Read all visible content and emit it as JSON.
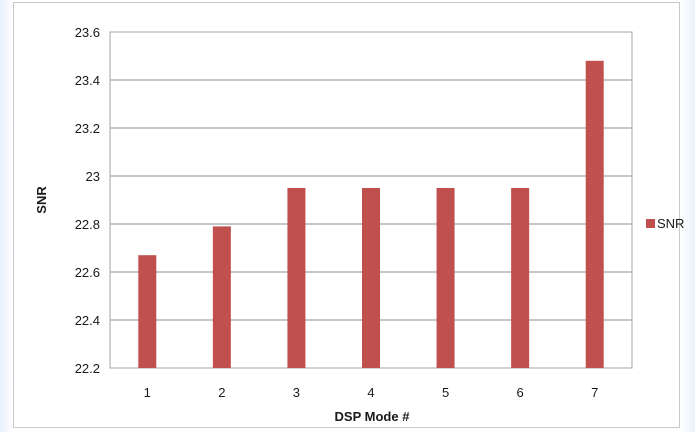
{
  "chart_data": {
    "type": "bar",
    "categories": [
      "1",
      "2",
      "3",
      "4",
      "5",
      "6",
      "7"
    ],
    "series": [
      {
        "name": "SNR",
        "values": [
          22.67,
          22.79,
          22.95,
          22.95,
          22.95,
          22.95,
          23.48
        ],
        "color": "#c0504d"
      }
    ],
    "xlabel": "DSP Mode #",
    "ylabel": "SNR",
    "ylim": [
      22.2,
      23.6
    ],
    "yticks": [
      "22.2",
      "22.4",
      "22.6",
      "22.8",
      "23",
      "23.2",
      "23.4",
      "23.6"
    ],
    "grid": true,
    "legend": "right",
    "colors": {
      "gridline": "#8c8c8c",
      "plot_border": "#a6a6a6",
      "frame_border": "#c9c9c9"
    }
  }
}
